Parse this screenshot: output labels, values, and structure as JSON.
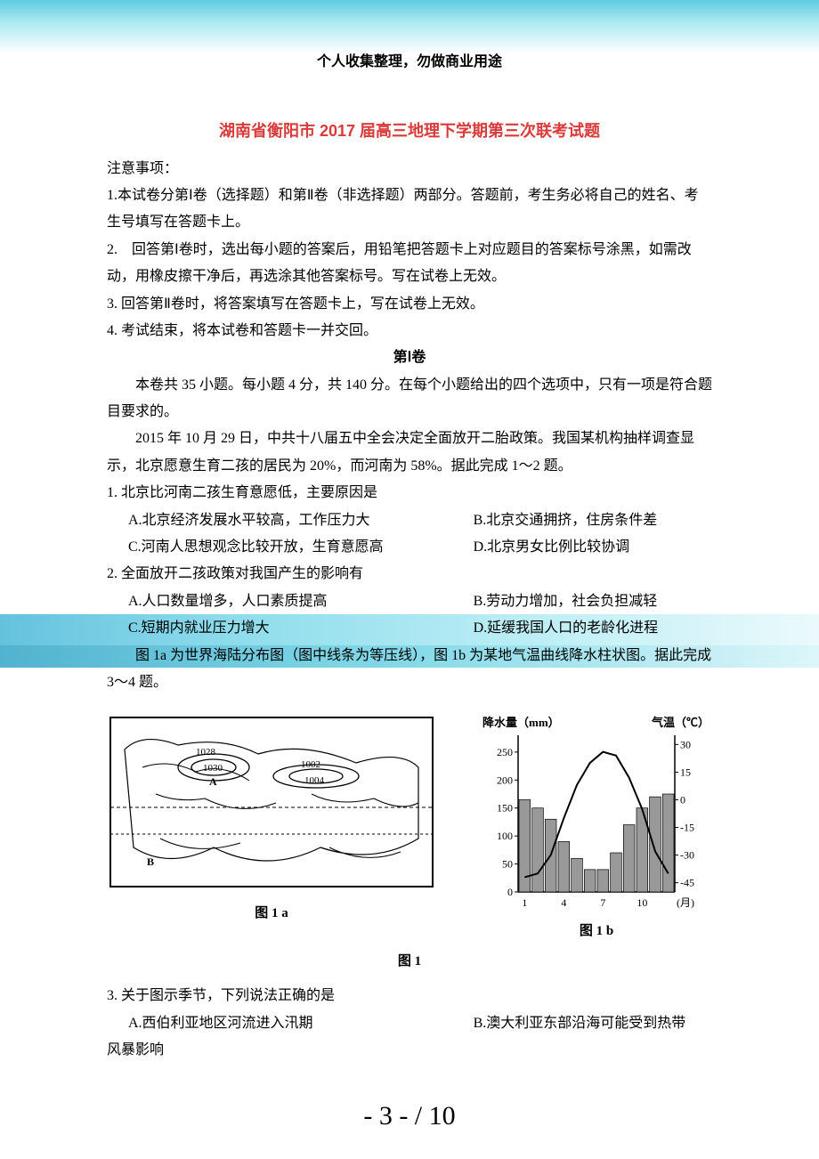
{
  "headerNote": "个人收集整理，勿做商业用途",
  "titleMain": "湖南省衡阳市 2017 届高三地理下学期第三次联考试题",
  "instrHeader": "注意事项：",
  "instr1": "1.本试卷分第Ⅰ卷（选择题）和第Ⅱ卷（非选择题）两部分。答题前，考生务必将自己的姓名、考生号填写在答题卡上。",
  "instr2": "2.　回答第Ⅰ卷时，选出每小题的答案后，用铅笔把答题卡上对应题目的答案标号涂黑，如需改动，用橡皮擦干净后，再选涂其他答案标号。写在试卷上无效。",
  "instr3": "3. 回答第Ⅱ卷时，将答案填写在答题卡上，写在试卷上无效。",
  "instr4": "4. 考试结束，将本试卷和答题卡一并交回。",
  "sectionTitle": "第Ⅰ卷",
  "sectionIntro": "本卷共 35 小题。每小题 4 分，共 140 分。在每个小题给出的四个选项中，只有一项是符合题目要求的。",
  "passage1": "2015 年 10 月 29 日，中共十八届五中全会决定全面放开二胎政策。我国某机构抽样调查显示，北京愿意生育二孩的居民为 20%，而河南为 58%。据此完成 1～2 题。",
  "q1": "1. 北京比河南二孩生育意愿低，主要原因是",
  "q1a": "A.北京经济发展水平较高，工作压力大",
  "q1b": "B.北京交通拥挤，住房条件差",
  "q1c": "C.河南人思想观念比较开放，生育意愿高",
  "q1d": "D.北京男女比例比较协调",
  "q2": "2. 全面放开二孩政策对我国产生的影响有",
  "q2a": "A.人口数量增多，人口素质提高",
  "q2b": "B.劳动力增加，社会负担减轻",
  "q2c": "C.短期内就业压力增大",
  "q2d": "D.延缓我国人口的老龄化进程",
  "passage2": "图 1a 为世界海陆分布图（图中线条为等压线），图 1b 为某地气温曲线降水柱状图。据此完成 3～4 题。",
  "figA": {
    "caption": "图 1 a",
    "isobars": [
      "1028",
      "1030",
      "1002",
      "1004"
    ],
    "markers": [
      "A",
      "B"
    ]
  },
  "figB": {
    "caption": "图 1 b",
    "left_axis_label": "降水量（mm）",
    "right_axis_label": "气温（℃）",
    "left_ticks": [
      0,
      50,
      100,
      150,
      200,
      250
    ],
    "right_ticks": [
      -45,
      -30,
      -15,
      0,
      15,
      30
    ],
    "x_ticks": [
      1,
      4,
      7,
      10
    ],
    "x_unit": "(月)",
    "bars": [
      165,
      150,
      130,
      90,
      60,
      40,
      40,
      70,
      120,
      150,
      170,
      175
    ],
    "temp_line": [
      -42,
      -40,
      -30,
      -10,
      8,
      20,
      26,
      24,
      12,
      -5,
      -28,
      -40
    ],
    "bar_color": "#666666",
    "line_color": "#000000",
    "background": "#ffffff"
  },
  "figCombinedCaption": "图 1",
  "q3": "3. 关于图示季节，下列说法正确的是",
  "q3a": "A.西伯利亚地区河流进入汛期",
  "q3b": "B.澳大利亚东部沿海可能受到热带",
  "q3cont": "风暴影响",
  "pageNum": "- 3 - / 10"
}
